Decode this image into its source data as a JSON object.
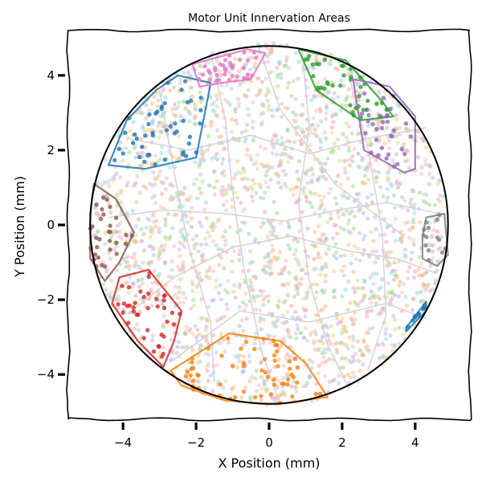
{
  "chart_data": {
    "type": "scatter",
    "title": "Motor Unit Innervation Areas",
    "xlabel": "X Position (mm)",
    "ylabel": "Y Position (mm)",
    "xlim": [
      -5.5,
      5.5
    ],
    "ylim": [
      -5.2,
      5.2
    ],
    "x_ticks": [
      -4,
      -2,
      0,
      2,
      4
    ],
    "y_ticks": [
      -4,
      -2,
      0,
      2,
      4
    ],
    "x_tick_labels": [
      "−4",
      "−2",
      "0",
      "2",
      "4"
    ],
    "y_tick_labels": [
      "−4",
      "−2",
      "0",
      "2",
      "4"
    ],
    "muscle_boundary": {
      "shape": "circle",
      "center": [
        0,
        0
      ],
      "radius": 4.9,
      "color": "#000000"
    },
    "background_fibers": {
      "count": 2200,
      "seed": 7,
      "palette": [
        "#f4a6a6",
        "#f7b6d2",
        "#c5b0d5",
        "#c7c7c7",
        "#98df8a",
        "#ffbb78",
        "#aec7e8",
        "#dbdb8d",
        "#9edae5",
        "#f2c7a8"
      ]
    },
    "territory_lines_color": "#d8d0d8",
    "territory_lines": [
      [
        [
          -3.9,
          -2.4
        ],
        [
          -2.6,
          -1.4
        ],
        [
          -1.0,
          -0.6
        ],
        [
          0.6,
          -0.3
        ],
        [
          2.2,
          -0.7
        ],
        [
          3.5,
          -0.9
        ],
        [
          4.6,
          -1.3
        ]
      ],
      [
        [
          -4.4,
          0.2
        ],
        [
          -2.9,
          0.4
        ],
        [
          -1.2,
          0.3
        ],
        [
          0.4,
          0.1
        ],
        [
          1.9,
          0.4
        ],
        [
          3.2,
          0.6
        ],
        [
          4.7,
          0.3
        ]
      ],
      [
        [
          -3.8,
          2.3
        ],
        [
          -2.2,
          2.0
        ],
        [
          -0.5,
          2.4
        ],
        [
          1.1,
          1.9
        ],
        [
          2.6,
          2.3
        ],
        [
          4.3,
          2.6
        ]
      ],
      [
        [
          -1.6,
          4.6
        ],
        [
          -1.2,
          2.8
        ],
        [
          -1.0,
          0.9
        ],
        [
          -0.7,
          -1.1
        ],
        [
          -0.2,
          -3.4
        ],
        [
          0.3,
          -4.8
        ]
      ],
      [
        [
          0.9,
          4.7
        ],
        [
          1.1,
          2.6
        ],
        [
          0.8,
          0.6
        ],
        [
          1.1,
          -1.5
        ],
        [
          1.6,
          -3.2
        ],
        [
          2.2,
          -4.4
        ]
      ],
      [
        [
          2.1,
          4.3
        ],
        [
          2.7,
          2.1
        ],
        [
          3.1,
          -0.2
        ],
        [
          3.2,
          -2.4
        ],
        [
          2.7,
          -3.9
        ]
      ],
      [
        [
          -3.0,
          3.6
        ],
        [
          -2.6,
          1.4
        ],
        [
          -2.2,
          -0.6
        ],
        [
          -1.6,
          -2.6
        ],
        [
          -1.5,
          -4.2
        ]
      ],
      [
        [
          -2.6,
          -3.6
        ],
        [
          -0.8,
          -2.3
        ],
        [
          1.1,
          -2.6
        ],
        [
          3.2,
          -2.1
        ],
        [
          4.3,
          -2.5
        ]
      ],
      [
        [
          -0.3,
          4.8
        ],
        [
          0.3,
          3.1
        ],
        [
          1.8,
          1.1
        ],
        [
          3.7,
          -0.3
        ]
      ]
    ],
    "motor_units": [
      {
        "color": "#1f77b4",
        "hull": [
          [
            -2.5,
            4.0
          ],
          [
            -1.6,
            3.8
          ],
          [
            -2.0,
            1.8
          ],
          [
            -3.4,
            1.5
          ],
          [
            -4.4,
            1.6
          ],
          [
            -3.9,
            2.8
          ],
          [
            -3.1,
            3.6
          ]
        ],
        "n_points": 45,
        "seed": 11
      },
      {
        "color": "#e377c2",
        "hull": [
          [
            -2.1,
            4.3
          ],
          [
            -0.6,
            4.7
          ],
          [
            -0.1,
            4.6
          ],
          [
            -0.5,
            3.9
          ],
          [
            -1.3,
            3.8
          ],
          [
            -1.9,
            3.7
          ]
        ],
        "n_points": 35,
        "seed": 12
      },
      {
        "color": "#2ca02c",
        "hull": [
          [
            0.8,
            4.7
          ],
          [
            2.1,
            4.4
          ],
          [
            3.1,
            3.3
          ],
          [
            3.4,
            2.9
          ],
          [
            2.5,
            2.8
          ],
          [
            1.3,
            3.6
          ]
        ],
        "n_points": 40,
        "seed": 13
      },
      {
        "color": "#9467bd",
        "hull": [
          [
            2.3,
            3.9
          ],
          [
            3.3,
            3.7
          ],
          [
            4.0,
            2.9
          ],
          [
            4.0,
            1.5
          ],
          [
            3.7,
            1.4
          ],
          [
            2.6,
            2.0
          ]
        ],
        "n_points": 32,
        "seed": 14
      },
      {
        "color": "#8c564b",
        "hull": [
          [
            -4.8,
            1.1
          ],
          [
            -4.2,
            0.7
          ],
          [
            -3.7,
            -0.2
          ],
          [
            -4.1,
            -1.0
          ],
          [
            -4.5,
            -1.5
          ],
          [
            -4.9,
            -0.9
          ],
          [
            -4.9,
            0.3
          ]
        ],
        "n_points": 30,
        "seed": 15
      },
      {
        "color": "#7f7f7f",
        "hull": [
          [
            4.3,
            0.2
          ],
          [
            4.8,
            0.3
          ],
          [
            4.9,
            -0.8
          ],
          [
            4.6,
            -1.1
          ],
          [
            4.2,
            -0.9
          ],
          [
            4.2,
            -0.3
          ]
        ],
        "n_points": 14,
        "seed": 16
      },
      {
        "color": "#d62728",
        "hull": [
          [
            -4.1,
            -1.4
          ],
          [
            -3.3,
            -1.2
          ],
          [
            -2.4,
            -2.3
          ],
          [
            -2.6,
            -3.1
          ],
          [
            -2.9,
            -3.8
          ],
          [
            -3.6,
            -3.1
          ],
          [
            -4.3,
            -2.1
          ]
        ],
        "n_points": 38,
        "seed": 17
      },
      {
        "color": "#ff7f0e",
        "hull": [
          [
            -2.7,
            -3.9
          ],
          [
            -1.1,
            -2.9
          ],
          [
            0.3,
            -3.1
          ],
          [
            1.0,
            -3.7
          ],
          [
            1.6,
            -4.6
          ],
          [
            0.2,
            -4.8
          ],
          [
            -1.2,
            -4.7
          ],
          [
            -2.4,
            -4.3
          ]
        ],
        "n_points": 60,
        "seed": 18
      },
      {
        "color": "#1f77b4",
        "hull": [
          [
            3.75,
            -2.75
          ],
          [
            4.3,
            -2.05
          ],
          [
            4.3,
            -2.3
          ],
          [
            3.75,
            -2.85
          ]
        ],
        "n_points": 10,
        "seed": 19
      }
    ]
  }
}
